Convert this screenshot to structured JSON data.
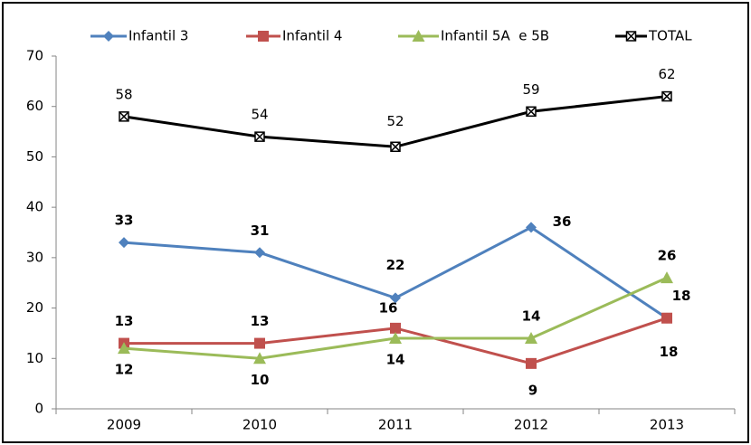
{
  "chart_data": {
    "type": "line",
    "categories": [
      "2009",
      "2010",
      "2011",
      "2012",
      "2013"
    ],
    "series": [
      {
        "name": "Infantil 3",
        "color": "#4f81bd",
        "label_color": "#1f6fb5",
        "marker": "diamond",
        "values": [
          33,
          31,
          22,
          36,
          18
        ]
      },
      {
        "name": "Infantil 4",
        "color": "#c0504d",
        "label_color": "#c00000",
        "marker": "square",
        "values": [
          13,
          13,
          16,
          9,
          18
        ]
      },
      {
        "name": "Infantil 5A  e 5B",
        "color": "#9bbb59",
        "label_color": "#9bbb59",
        "marker": "triangle",
        "values": [
          12,
          10,
          14,
          14,
          26
        ]
      },
      {
        "name": "TOTAL",
        "color": "#000000",
        "label_color": "#000000",
        "marker": "xsquare",
        "values": [
          58,
          54,
          52,
          59,
          62
        ]
      }
    ],
    "ylim": [
      0,
      70
    ],
    "yticks": [
      0,
      10,
      20,
      30,
      40,
      50,
      60,
      70
    ],
    "grid": false,
    "legend": "top"
  }
}
